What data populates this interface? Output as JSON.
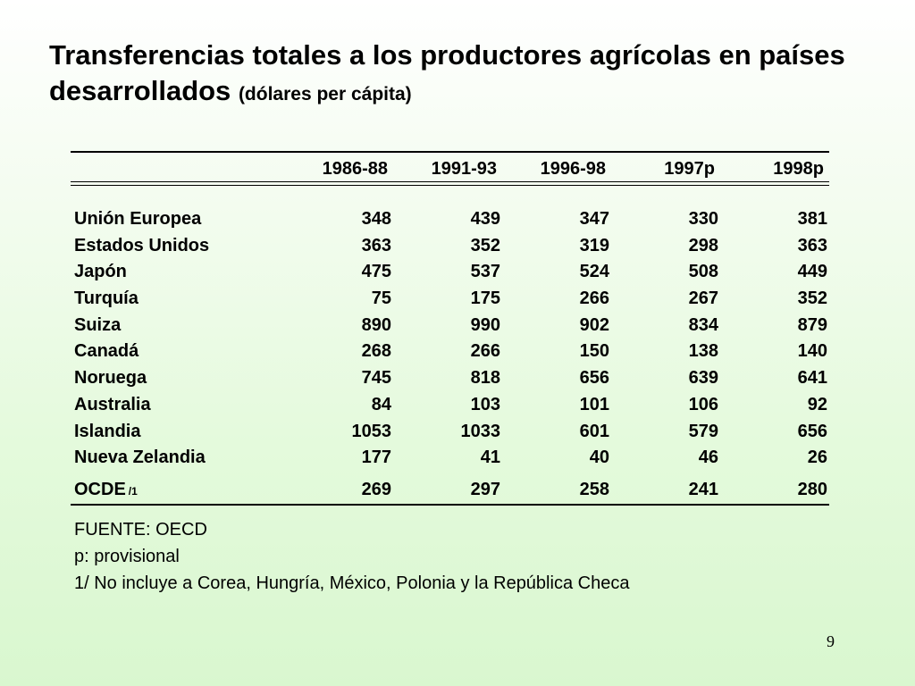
{
  "title": {
    "main": "Transferencias totales a los productores agrícolas en países desarrollados",
    "sub": "(dólares per cápita)"
  },
  "table": {
    "columns": [
      "1986-88",
      "1991-93",
      "1996-98",
      "1997p",
      "1998p"
    ],
    "rows": [
      {
        "name": "Unión Europea",
        "values": [
          "348",
          "439",
          "347",
          "330",
          "381"
        ]
      },
      {
        "name": "Estados Unidos",
        "values": [
          "363",
          "352",
          "319",
          "298",
          "363"
        ]
      },
      {
        "name": "Japón",
        "values": [
          "475",
          "537",
          "524",
          "508",
          "449"
        ]
      },
      {
        "name": "Turquía",
        "values": [
          "75",
          "175",
          "266",
          "267",
          "352"
        ]
      },
      {
        "name": "Suiza",
        "values": [
          "890",
          "990",
          "902",
          "834",
          "879"
        ]
      },
      {
        "name": "Canadá",
        "values": [
          "268",
          "266",
          "150",
          "138",
          "140"
        ]
      },
      {
        "name": "Noruega",
        "values": [
          "745",
          "818",
          "656",
          "639",
          "641"
        ]
      },
      {
        "name": "Australia",
        "values": [
          "84",
          "103",
          "101",
          "106",
          "92"
        ]
      },
      {
        "name": "Islandia",
        "values": [
          "1053",
          "1033",
          "601",
          "579",
          "656"
        ]
      },
      {
        "name": "Nueva Zelandia",
        "values": [
          "177",
          "41",
          "40",
          "46",
          "26"
        ]
      }
    ],
    "total": {
      "name": "OCDE",
      "footnote": "/1",
      "values": [
        "269",
        "297",
        "258",
        "241",
        "280"
      ]
    }
  },
  "notes": [
    "FUENTE: OECD",
    "p: provisional",
    "1/ No incluye a Corea, Hungría, México, Polonia y la República Checa"
  ],
  "page_number": "9"
}
